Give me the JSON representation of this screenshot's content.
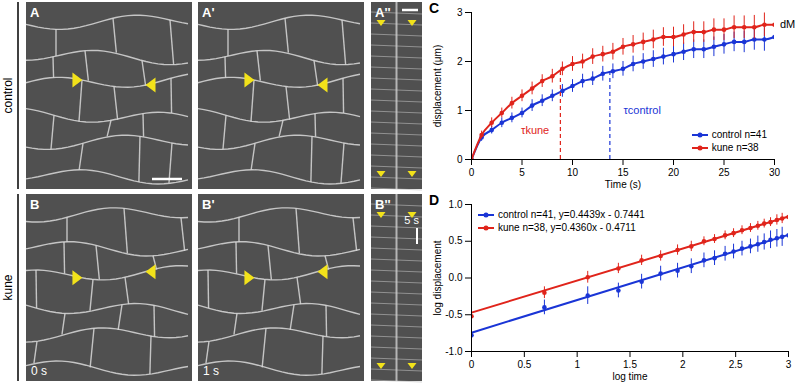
{
  "image_panels": [
    {
      "row_label": "control",
      "panels": [
        {
          "label": "A"
        },
        {
          "label": "A'"
        },
        {
          "label": "A''"
        }
      ]
    },
    {
      "row_label": "kune",
      "panels": [
        {
          "label": "B",
          "caption": "0 s"
        },
        {
          "label": "B'",
          "caption": "1 s"
        },
        {
          "label": "B''",
          "caption": "5 s"
        }
      ]
    }
  ],
  "chart_data": [
    {
      "type": "line",
      "title": "C",
      "x_label": "Time (s)",
      "y_label": "displacement (μm)",
      "xlim": [
        0,
        30
      ],
      "xticks": [
        0,
        5,
        10,
        15,
        20,
        25,
        30
      ],
      "ylim": [
        0,
        3
      ],
      "yticks": [
        0,
        1,
        2,
        3
      ],
      "legend": "bottom-right",
      "marker": "circle",
      "x": [
        0,
        1,
        2,
        3,
        4,
        5,
        6,
        7,
        8,
        9,
        10,
        11,
        12,
        13,
        14,
        15,
        16,
        17,
        18,
        19,
        20,
        21,
        22,
        23,
        24,
        25,
        26,
        27,
        28,
        29,
        30
      ],
      "series": [
        {
          "name": "control n=41",
          "color": "#1a35d6",
          "values": [
            0,
            0.45,
            0.6,
            0.75,
            0.85,
            0.95,
            1.1,
            1.2,
            1.3,
            1.4,
            1.5,
            1.6,
            1.65,
            1.75,
            1.8,
            1.85,
            1.95,
            2.0,
            2.05,
            2.1,
            2.15,
            2.2,
            2.25,
            2.25,
            2.3,
            2.35,
            2.4,
            2.4,
            2.45,
            2.45,
            2.5
          ],
          "error": [
            0,
            0.08,
            0.08,
            0.1,
            0.1,
            0.1,
            0.12,
            0.12,
            0.12,
            0.13,
            0.13,
            0.14,
            0.14,
            0.15,
            0.15,
            0.15,
            0.16,
            0.16,
            0.17,
            0.17,
            0.18,
            0.18,
            0.19,
            0.19,
            0.2,
            0.2,
            0.2,
            0.22,
            0.22,
            0.24,
            0.25
          ]
        },
        {
          "name": "kune n=38",
          "color": "#e0241b",
          "values": [
            0,
            0.5,
            0.75,
            0.95,
            1.15,
            1.3,
            1.45,
            1.6,
            1.7,
            1.85,
            1.95,
            2.0,
            2.1,
            2.15,
            2.2,
            2.3,
            2.35,
            2.4,
            2.45,
            2.5,
            2.5,
            2.55,
            2.6,
            2.6,
            2.65,
            2.65,
            2.7,
            2.7,
            2.7,
            2.75,
            2.75
          ],
          "error": [
            0,
            0.08,
            0.1,
            0.1,
            0.12,
            0.12,
            0.13,
            0.13,
            0.14,
            0.14,
            0.15,
            0.15,
            0.16,
            0.16,
            0.17,
            0.17,
            0.18,
            0.18,
            0.19,
            0.19,
            0.2,
            0.2,
            0.21,
            0.21,
            0.22,
            0.22,
            0.23,
            0.23,
            0.24,
            0.24,
            0.25
          ]
        }
      ],
      "reference_lines": [
        {
          "x": 8.8,
          "y_to": 1.82,
          "color": "#e0241b",
          "line_style": "dashed"
        },
        {
          "x": 13.7,
          "y_to": 1.78,
          "color": "#1a35d6",
          "line_style": "dashed"
        }
      ],
      "annotations": [
        {
          "text": "τkune",
          "x": 6.3,
          "y": 0.6,
          "color": "#e0241b"
        },
        {
          "text": "τcontrol",
          "x": 16.9,
          "y": 1.0,
          "color": "#1a35d6"
        },
        {
          "text": "dM",
          "x": 31.3,
          "y": 2.75,
          "color": "#000000"
        }
      ]
    },
    {
      "type": "line",
      "title": "D",
      "x_label": "log time",
      "y_label": "log displacement",
      "xlim": [
        0,
        3
      ],
      "xticks": [
        0,
        0.5,
        1,
        1.5,
        2,
        2.5,
        3
      ],
      "ylim": [
        -1,
        1
      ],
      "yticks": [
        {
          "value": -1,
          "label": "-1.0"
        },
        {
          "value": -0.5,
          "label": "-0.5"
        },
        {
          "value": 0,
          "label": "0.0"
        },
        {
          "value": 0.5,
          "label": "0.5"
        },
        {
          "value": 1,
          "label": "1.0"
        }
      ],
      "legend": "top-left",
      "marker": "circle",
      "x": [
        0,
        0.69,
        1.1,
        1.39,
        1.61,
        1.79,
        1.95,
        2.08,
        2.2,
        2.3,
        2.4,
        2.48,
        2.56,
        2.64,
        2.71,
        2.77,
        2.83,
        2.89,
        2.94,
        3.0
      ],
      "series": [
        {
          "name": "control n=41, y=0.4439x - 0.7441",
          "color": "#1a35d6",
          "values": [
            -0.78,
            -0.4,
            -0.24,
            -0.17,
            -0.05,
            0.06,
            0.1,
            0.16,
            0.24,
            0.27,
            0.33,
            0.36,
            0.4,
            0.43,
            0.46,
            0.49,
            0.52,
            0.54,
            0.56,
            0.58
          ],
          "error": [
            0.05,
            0.1,
            0.12,
            0.1,
            0.1,
            0.1,
            0.1,
            0.1,
            0.1,
            0.1,
            0.1,
            0.1,
            0.1,
            0.1,
            0.11,
            0.11,
            0.12,
            0.12,
            0.13,
            0.14
          ],
          "fit": {
            "x": [
              0,
              3
            ],
            "y": [
              -0.7441,
              0.5876
            ]
          }
        },
        {
          "name": "kune n=38, y=0.4360x - 0.4711",
          "color": "#e0241b",
          "values": [
            -0.52,
            -0.2,
            0.01,
            0.13,
            0.24,
            0.3,
            0.38,
            0.43,
            0.5,
            0.53,
            0.58,
            0.61,
            0.65,
            0.68,
            0.71,
            0.74,
            0.76,
            0.79,
            0.81,
            0.83
          ],
          "error": [
            0.06,
            0.08,
            0.08,
            0.07,
            0.07,
            0.07,
            0.07,
            0.07,
            0.06,
            0.06,
            0.06,
            0.06,
            0.06,
            0.06,
            0.06,
            0.06,
            0.06,
            0.07,
            0.07,
            0.07
          ],
          "fit": {
            "x": [
              0,
              3
            ],
            "y": [
              -0.4711,
              0.8369
            ]
          }
        }
      ]
    }
  ]
}
